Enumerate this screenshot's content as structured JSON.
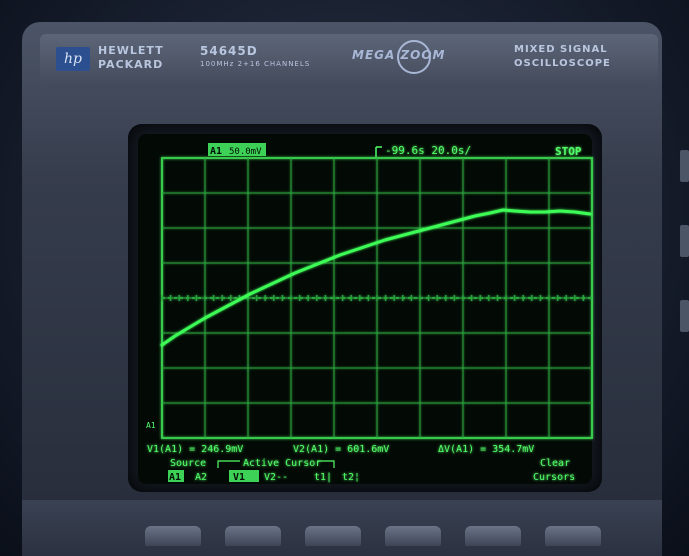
{
  "instrument": {
    "brand_line1": "HEWLETT",
    "brand_line2": "PACKARD",
    "model": "54645D",
    "model_subtitle": "100MHz 2+16 CHANNELS",
    "megazoom": "MEGA ZOOM",
    "type_line1": "MIXED SIGNAL",
    "type_line2": "OSCILLOSCOPE"
  },
  "display": {
    "channel_tag": "A1",
    "channel_scale": "50.0mV",
    "timebase": "-99.6s  20.0s/",
    "run_status": "STOP",
    "ground_marker": "A1",
    "readout_v1": "V1(A1) = 246.9mV",
    "readout_v2": "V2(A1) = 601.6mV",
    "readout_dv": "ΔV(A1) = 354.7mV",
    "menu_source": "Source",
    "menu_source_a1": "A1",
    "menu_source_a2": "A2",
    "menu_active_cursor": "Active Cursor",
    "menu_v1": "V1",
    "menu_v2": "V2--",
    "menu_t1": "t1|",
    "menu_t2": "t2¦",
    "menu_clear_line1": "Clear",
    "menu_clear_line2": "Cursors"
  },
  "colors": {
    "trace": "#3dfc57",
    "graticule": "#37c94d",
    "grid": "#29a53c",
    "text": "#52ff68",
    "highlight_bg": "#3dd257",
    "highlight_text": "#041106"
  }
}
